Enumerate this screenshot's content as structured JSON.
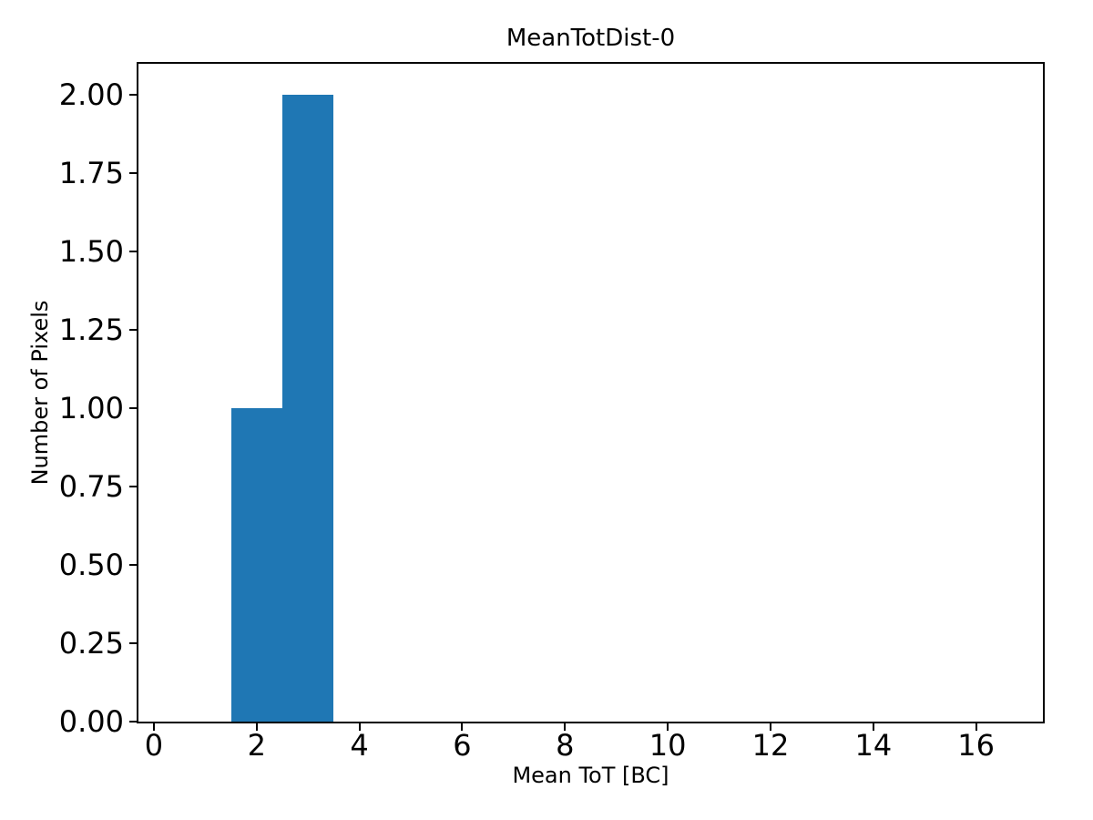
{
  "figure": {
    "background": "#ffffff"
  },
  "chart_data": {
    "type": "bar",
    "subtype": "histogram",
    "title": "MeanTotDist-0",
    "xlabel": "Mean ToT [BC]",
    "ylabel": "Number of Pixels",
    "bin_edges": [
      1.5,
      2.5,
      3.5
    ],
    "counts": [
      1,
      2
    ],
    "bar_color": "#1f77b4",
    "axis_color": "#000000",
    "xlim": [
      -0.3,
      17.3
    ],
    "ylim": [
      0,
      2.1
    ],
    "x_ticks": [
      0,
      2,
      4,
      6,
      8,
      10,
      12,
      14,
      16
    ],
    "y_tick_values": [
      0,
      0.25,
      0.5,
      0.75,
      1.0,
      1.25,
      1.5,
      1.75,
      2.0
    ],
    "y_tick_labels": [
      "0.00",
      "0.25",
      "0.50",
      "0.75",
      "1.00",
      "1.25",
      "1.50",
      "1.75",
      "2.00"
    ],
    "grid": false,
    "legend": null
  }
}
